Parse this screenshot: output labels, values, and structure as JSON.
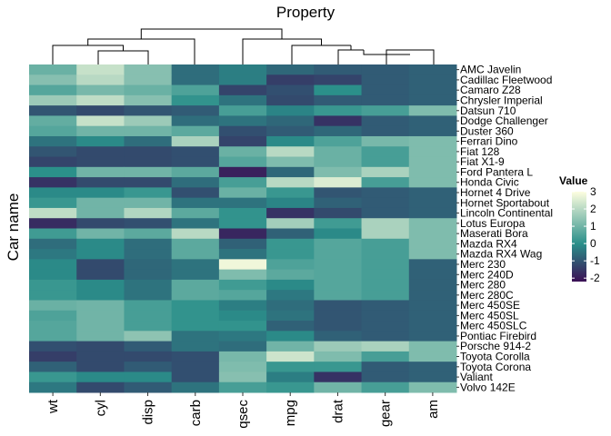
{
  "chart_data": {
    "type": "heatmap",
    "title": "Property",
    "xlabel": "",
    "ylabel": "Car name",
    "columns": [
      "wt",
      "cyl",
      "disp",
      "carb",
      "qsec",
      "mpg",
      "drat",
      "gear",
      "am"
    ],
    "rows": [
      "AMC Javelin",
      "Cadillac Fleetwood",
      "Camaro Z28",
      "Chrysler Imperial",
      "Datsun 710",
      "Dodge Challenger",
      "Duster 360",
      "Ferrari Dino",
      "Fiat 128",
      "Fiat X1-9",
      "Ford Pantera L",
      "Honda Civic",
      "Hornet 4 Drive",
      "Hornet Sportabout",
      "Lincoln Continental",
      "Lotus Europa",
      "Maserati Bora",
      "Mazda RX4",
      "Mazda RX4 Wag",
      "Merc 230",
      "Merc 240D",
      "Merc 280",
      "Merc 280C",
      "Merc 450SE",
      "Merc 450SL",
      "Merc 450SLC",
      "Pontiac Firebird",
      "Porsche 914-2",
      "Toyota Corolla",
      "Toyota Corona",
      "Valiant",
      "Volvo 142E"
    ],
    "values": [
      [
        0.9,
        2.2,
        1.3,
        -0.6,
        -0.3,
        -0.7,
        -0.9,
        -0.9,
        -0.8
      ],
      [
        1.3,
        2.0,
        1.3,
        -0.6,
        -0.3,
        -1.4,
        -1.3,
        -0.9,
        -0.8
      ],
      [
        0.6,
        1.1,
        0.9,
        0.5,
        -1.3,
        -1.1,
        0.0,
        -0.9,
        -0.8
      ],
      [
        1.6,
        2.1,
        1.3,
        0.1,
        -0.5,
        -1.2,
        -0.9,
        -0.9,
        -0.8
      ],
      [
        -1.0,
        -1.2,
        -1.0,
        -0.9,
        0.4,
        -0.2,
        0.2,
        0.4,
        1.2
      ],
      [
        0.8,
        2.2,
        1.6,
        -0.6,
        -0.5,
        -0.7,
        -1.6,
        -0.9,
        -0.8
      ],
      [
        0.6,
        1.0,
        1.0,
        0.7,
        -1.1,
        -0.9,
        -0.7,
        -0.9,
        -0.8
      ],
      [
        -0.5,
        -0.1,
        -0.6,
        1.8,
        -1.3,
        -0.1,
        0.5,
        1.1,
        1.2
      ],
      [
        -1.0,
        -1.2,
        -1.2,
        -1.1,
        0.9,
        2.0,
        0.9,
        0.4,
        1.2
      ],
      [
        -1.3,
        -1.2,
        -1.2,
        -1.1,
        0.6,
        1.2,
        0.9,
        0.4,
        1.2
      ],
      [
        0.0,
        1.0,
        1.0,
        0.7,
        -1.9,
        -0.7,
        1.2,
        1.8,
        1.2
      ],
      [
        -1.6,
        -1.2,
        -1.2,
        -0.6,
        0.4,
        2.0,
        2.5,
        0.4,
        1.2
      ],
      [
        -0.1,
        -0.1,
        0.2,
        -1.1,
        0.9,
        0.2,
        -1.0,
        -0.9,
        -0.8
      ],
      [
        0.2,
        1.0,
        1.0,
        -0.5,
        -0.5,
        -0.2,
        -0.8,
        -0.9,
        -0.8
      ],
      [
        2.1,
        1.0,
        1.9,
        0.7,
        0.1,
        -1.6,
        -1.2,
        -0.9,
        -0.8
      ],
      [
        -1.7,
        -1.2,
        -1.1,
        -0.5,
        0.1,
        1.7,
        0.3,
        1.8,
        1.2
      ],
      [
        0.3,
        1.0,
        0.7,
        2.0,
        -1.8,
        -0.8,
        -0.1,
        1.8,
        1.2
      ],
      [
        -0.6,
        -0.1,
        -0.6,
        0.7,
        -0.8,
        0.2,
        0.6,
        0.4,
        1.2
      ],
      [
        -0.4,
        -0.1,
        -0.6,
        0.7,
        -0.5,
        0.2,
        0.6,
        0.4,
        1.2
      ],
      [
        -0.1,
        -1.2,
        -0.7,
        -0.5,
        2.8,
        0.5,
        0.6,
        0.4,
        -0.8
      ],
      [
        -0.1,
        -1.2,
        -0.7,
        -0.5,
        1.2,
        0.7,
        0.6,
        0.4,
        -0.8
      ],
      [
        0.2,
        -0.1,
        -0.5,
        0.7,
        0.3,
        -0.1,
        0.6,
        0.4,
        -0.8
      ],
      [
        0.2,
        -0.1,
        -0.5,
        0.7,
        0.6,
        -0.4,
        0.6,
        0.4,
        -0.8
      ],
      [
        0.9,
        1.0,
        0.4,
        0.1,
        -0.3,
        -0.6,
        -1.0,
        -0.9,
        -0.8
      ],
      [
        0.5,
        1.0,
        0.4,
        0.1,
        -0.1,
        -0.5,
        -1.0,
        -0.9,
        -0.8
      ],
      [
        0.6,
        1.0,
        0.4,
        0.1,
        0.1,
        -0.8,
        -1.0,
        -0.9,
        -0.8
      ],
      [
        0.6,
        1.0,
        1.4,
        -0.5,
        -0.4,
        -0.1,
        -0.8,
        -0.9,
        -0.8
      ],
      [
        -1.1,
        -1.2,
        -0.9,
        -0.5,
        -0.6,
        1.0,
        1.6,
        1.8,
        1.2
      ],
      [
        -1.4,
        -1.2,
        -1.2,
        -1.1,
        1.1,
        2.3,
        1.2,
        0.4,
        1.2
      ],
      [
        -0.8,
        -1.2,
        -0.9,
        -1.1,
        1.2,
        0.2,
        0.2,
        -0.9,
        -0.8
      ],
      [
        0.2,
        -0.1,
        -0.1,
        -1.1,
        1.3,
        -0.3,
        -1.6,
        -0.9,
        -0.8
      ],
      [
        -0.4,
        -1.2,
        -0.9,
        -0.5,
        0.4,
        0.2,
        1.0,
        0.4,
        1.2
      ]
    ],
    "legend": {
      "title": "Value",
      "ticks": [
        3,
        2,
        1,
        0,
        -1,
        -2
      ],
      "range": [
        -2.2,
        3.0
      ],
      "colors": [
        "#3b0f55",
        "#2a8f8a",
        "#fefee0"
      ]
    },
    "dendrogram": "top"
  }
}
